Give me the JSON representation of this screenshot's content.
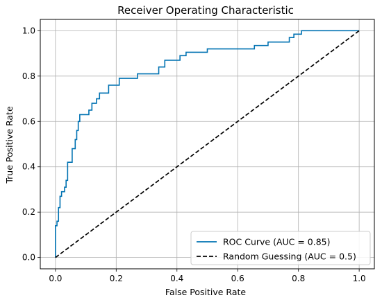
{
  "chart_data": {
    "type": "line",
    "title": "Receiver Operating Characteristic",
    "xlabel": "False Positive Rate",
    "ylabel": "True Positive Rate",
    "xlim": [
      -0.05,
      1.05
    ],
    "ylim": [
      -0.05,
      1.05
    ],
    "xticks": [
      0.0,
      0.2,
      0.4,
      0.6,
      0.8,
      1.0
    ],
    "yticks": [
      0.0,
      0.2,
      0.4,
      0.6,
      0.8,
      1.0
    ],
    "xtick_labels": [
      "0.0",
      "0.2",
      "0.4",
      "0.6",
      "0.8",
      "1.0"
    ],
    "ytick_labels": [
      "0.0",
      "0.2",
      "0.4",
      "0.6",
      "0.8",
      "1.0"
    ],
    "grid": true,
    "legend_position": "lower right",
    "series": [
      {
        "name": "ROC Curve (AUC = 0.85)",
        "color": "#0072b2",
        "style": "solid",
        "step": true,
        "x": [
          0.0,
          0.0,
          0.005,
          0.005,
          0.01,
          0.01,
          0.015,
          0.015,
          0.02,
          0.02,
          0.03,
          0.03,
          0.035,
          0.035,
          0.04,
          0.04,
          0.055,
          0.055,
          0.065,
          0.065,
          0.07,
          0.07,
          0.075,
          0.075,
          0.08,
          0.08,
          0.11,
          0.11,
          0.12,
          0.12,
          0.135,
          0.135,
          0.145,
          0.145,
          0.175,
          0.175,
          0.21,
          0.21,
          0.27,
          0.27,
          0.34,
          0.34,
          0.36,
          0.36,
          0.41,
          0.41,
          0.43,
          0.43,
          0.5,
          0.5,
          0.655,
          0.655,
          0.7,
          0.7,
          0.77,
          0.77,
          0.785,
          0.785,
          0.81,
          0.81,
          1.0
        ],
        "y": [
          0.0,
          0.14,
          0.14,
          0.16,
          0.16,
          0.22,
          0.22,
          0.27,
          0.27,
          0.29,
          0.29,
          0.31,
          0.31,
          0.34,
          0.34,
          0.42,
          0.42,
          0.48,
          0.48,
          0.52,
          0.52,
          0.56,
          0.56,
          0.6,
          0.6,
          0.63,
          0.63,
          0.65,
          0.65,
          0.68,
          0.68,
          0.7,
          0.7,
          0.725,
          0.725,
          0.76,
          0.76,
          0.79,
          0.79,
          0.81,
          0.81,
          0.84,
          0.84,
          0.87,
          0.87,
          0.89,
          0.89,
          0.905,
          0.905,
          0.92,
          0.92,
          0.935,
          0.935,
          0.95,
          0.95,
          0.97,
          0.97,
          0.985,
          0.985,
          1.0,
          1.0
        ]
      },
      {
        "name": "Random Guessing (AUC = 0.5)",
        "color": "#000000",
        "style": "dashed",
        "step": false,
        "x": [
          0.0,
          1.0
        ],
        "y": [
          0.0,
          1.0
        ]
      }
    ]
  }
}
